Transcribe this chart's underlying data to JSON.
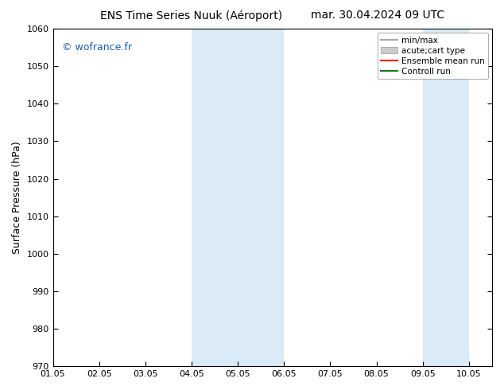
{
  "title_left": "ENS Time Series Nuuk (Aéroport)",
  "title_right": "mar. 30.04.2024 09 UTC",
  "ylabel": "Surface Pressure (hPa)",
  "ylim": [
    970,
    1060
  ],
  "yticks": [
    970,
    980,
    990,
    1000,
    1010,
    1020,
    1030,
    1040,
    1050,
    1060
  ],
  "xtick_labels": [
    "01.05",
    "02.05",
    "03.05",
    "04.05",
    "05.05",
    "06.05",
    "07.05",
    "08.05",
    "09.05",
    "10.05"
  ],
  "shaded_bands": [
    {
      "xmin": 4.0,
      "xmax": 5.0,
      "color": "#daeaf7"
    },
    {
      "xmin": 5.0,
      "xmax": 6.0,
      "color": "#daeaf7"
    },
    {
      "xmin": 9.0,
      "xmax": 10.0,
      "color": "#daeaf7"
    }
  ],
  "copyright_text": "© wofrance.fr",
  "copyright_color": "#1a5fb4",
  "legend_entries": [
    {
      "label": "min/max",
      "color": "#aaaaaa",
      "lw": 1.5,
      "type": "line"
    },
    {
      "label": "acute;cart type",
      "color": "#cccccc",
      "lw": 6,
      "type": "patch"
    },
    {
      "label": "Ensemble mean run",
      "color": "red",
      "lw": 1.5,
      "type": "line"
    },
    {
      "label": "Controll run",
      "color": "green",
      "lw": 1.5,
      "type": "line"
    }
  ],
  "bg_color": "#ffffff",
  "plot_bg_color": "#ffffff",
  "title_fontsize": 10,
  "axis_label_fontsize": 9,
  "tick_fontsize": 8,
  "legend_fontsize": 7.5,
  "xlim": [
    1.0,
    10.5
  ],
  "xtick_positions": [
    1,
    2,
    3,
    4,
    5,
    6,
    7,
    8,
    9,
    10
  ]
}
